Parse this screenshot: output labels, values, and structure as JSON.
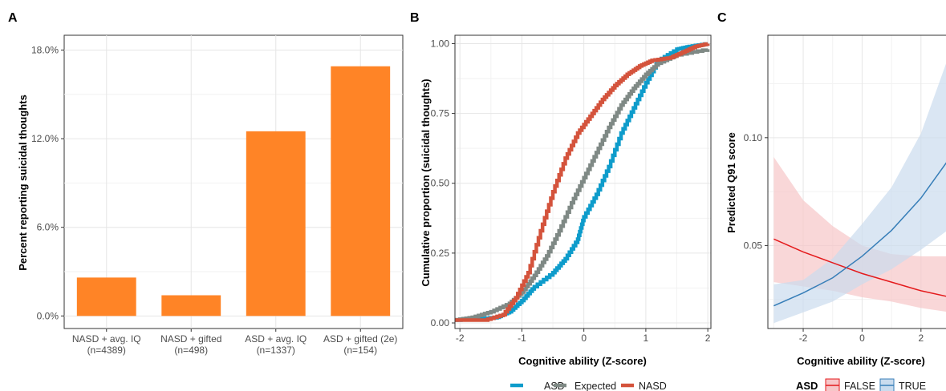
{
  "chart_data": [
    {
      "panel": "A",
      "type": "bar",
      "categories": [
        "NASD + avg. IQ\n(n=4389)",
        "NASD + gifted\n(n=498)",
        "ASD + avg. IQ\n(n=1337)",
        "ASD + gifted (2e)\n(n=154)"
      ],
      "values": [
        2.6,
        1.4,
        12.5,
        16.9
      ],
      "ylabel": "Percent reporting suicidal thoughts",
      "yticks": [
        "0.0%",
        "6.0%",
        "12.0%",
        "18.0%"
      ],
      "ylim": [
        -0.85,
        19.0
      ],
      "bar_color": "#FF8426"
    },
    {
      "panel": "B",
      "type": "line",
      "xlabel": "Cognitive ability (Z-score)",
      "ylabel": "Cumulative proportion (suicidal thoughts)",
      "xticks": [
        "-2",
        "-1",
        "0",
        "1",
        "2"
      ],
      "yticks": [
        "0.00",
        "0.25",
        "0.50",
        "0.75",
        "1.00"
      ],
      "xlim": [
        -2.08,
        2.05
      ],
      "ylim": [
        -0.02,
        1.03
      ],
      "series": [
        {
          "name": "ASD",
          "color": "#0E9CCB",
          "points": [
            [
              -2.1,
              0.01
            ],
            [
              -1.4,
              0.02
            ],
            [
              -1.2,
              0.04
            ],
            [
              -1.0,
              0.08
            ],
            [
              -0.8,
              0.13
            ],
            [
              -0.5,
              0.18
            ],
            [
              -0.3,
              0.23
            ],
            [
              -0.1,
              0.3
            ],
            [
              0.0,
              0.38
            ],
            [
              0.2,
              0.46
            ],
            [
              0.4,
              0.56
            ],
            [
              0.6,
              0.68
            ],
            [
              0.8,
              0.77
            ],
            [
              1.0,
              0.86
            ],
            [
              1.2,
              0.94
            ],
            [
              1.5,
              0.98
            ],
            [
              1.7,
              0.99
            ],
            [
              2.0,
              1.0
            ]
          ]
        },
        {
          "name": "Expected",
          "color": "#7F8985",
          "points": [
            [
              -2.1,
              0.01
            ],
            [
              -1.8,
              0.02
            ],
            [
              -1.5,
              0.04
            ],
            [
              -1.2,
              0.07
            ],
            [
              -1.0,
              0.11
            ],
            [
              -0.8,
              0.17
            ],
            [
              -0.6,
              0.24
            ],
            [
              -0.4,
              0.33
            ],
            [
              -0.2,
              0.43
            ],
            [
              0.0,
              0.52
            ],
            [
              0.2,
              0.61
            ],
            [
              0.4,
              0.7
            ],
            [
              0.6,
              0.78
            ],
            [
              0.8,
              0.84
            ],
            [
              1.0,
              0.89
            ],
            [
              1.2,
              0.93
            ],
            [
              1.5,
              0.96
            ],
            [
              2.0,
              0.98
            ]
          ]
        },
        {
          "name": "NASD",
          "color": "#D4533C",
          "points": [
            [
              -2.1,
              0.01
            ],
            [
              -1.6,
              0.01
            ],
            [
              -1.3,
              0.03
            ],
            [
              -1.1,
              0.09
            ],
            [
              -0.9,
              0.18
            ],
            [
              -0.7,
              0.33
            ],
            [
              -0.5,
              0.47
            ],
            [
              -0.3,
              0.59
            ],
            [
              -0.1,
              0.68
            ],
            [
              0.1,
              0.74
            ],
            [
              0.3,
              0.8
            ],
            [
              0.5,
              0.85
            ],
            [
              0.7,
              0.89
            ],
            [
              0.9,
              0.92
            ],
            [
              1.1,
              0.94
            ],
            [
              1.4,
              0.95
            ],
            [
              1.6,
              0.97
            ],
            [
              1.8,
              0.99
            ],
            [
              2.0,
              1.0
            ]
          ]
        }
      ]
    },
    {
      "panel": "C",
      "type": "area",
      "xlabel": "Cognitive ability (Z-score)",
      "ylabel": "Predicted Q91 score",
      "xticks": [
        "-2",
        "0",
        "2"
      ],
      "yticks": [
        "0.05",
        "0.10"
      ],
      "xlim": [
        -3.2,
        2.85
      ],
      "ylim": [
        0.0115,
        0.1475
      ],
      "legend_title": "ASD",
      "series": [
        {
          "name": "FALSE",
          "color": "#E41A1C",
          "fill": "#F7C6C8",
          "x": [
            -3,
            -2,
            -1,
            0,
            1,
            2,
            3
          ],
          "y": [
            0.053,
            0.047,
            0.042,
            0.037,
            0.033,
            0.029,
            0.026
          ],
          "lower": [
            0.033,
            0.031,
            0.029,
            0.026,
            0.024,
            0.021,
            0.019
          ],
          "upper": [
            0.091,
            0.071,
            0.059,
            0.05,
            0.046,
            0.045,
            0.045
          ]
        },
        {
          "name": "TRUE",
          "color": "#377EB8",
          "fill": "#CADCEE",
          "x": [
            -3,
            -2,
            -1,
            0,
            1,
            2,
            3
          ],
          "y": [
            0.022,
            0.028,
            0.035,
            0.045,
            0.057,
            0.072,
            0.091
          ],
          "lower": [
            0.014,
            0.019,
            0.024,
            0.032,
            0.039,
            0.048,
            0.058
          ],
          "upper": [
            0.032,
            0.034,
            0.044,
            0.06,
            0.077,
            0.102,
            0.14
          ]
        }
      ]
    }
  ],
  "panel_letters": [
    "A",
    "B",
    "C"
  ]
}
